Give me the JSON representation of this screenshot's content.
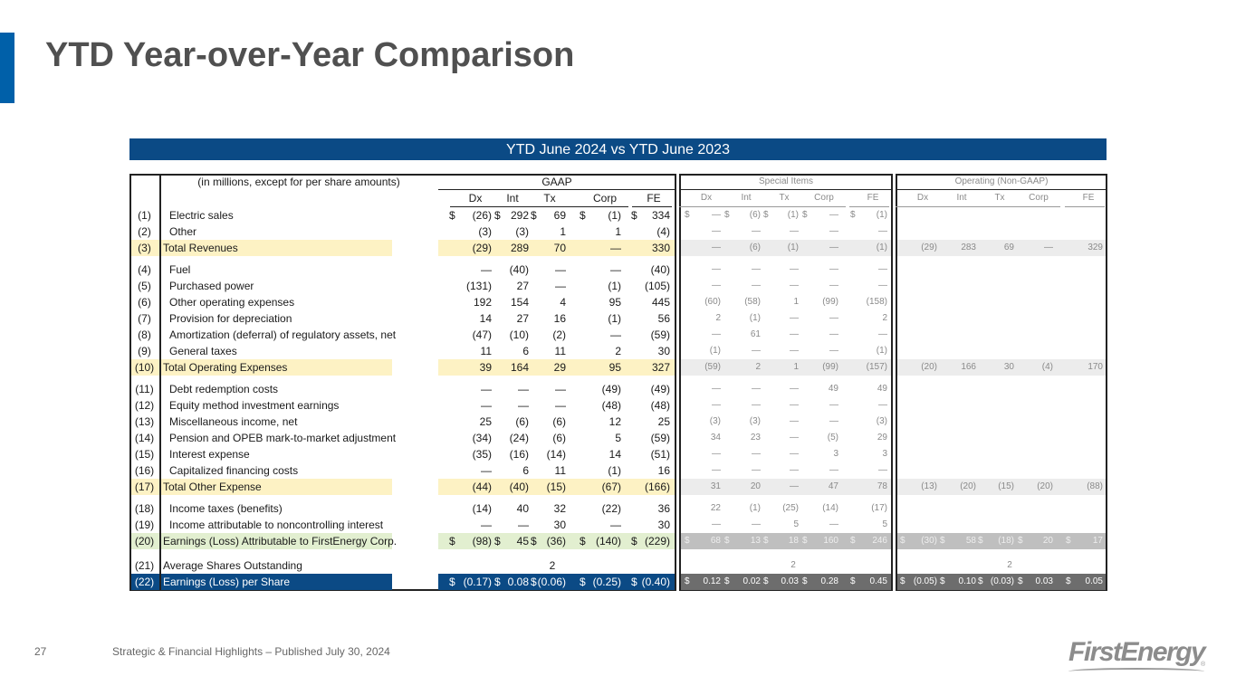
{
  "title": "YTD Year-over-Year Comparison",
  "banner": "YTD June 2024 vs YTD June 2023",
  "units_note": "(in millions, except for per share amounts)",
  "groups": {
    "gaap": "GAAP",
    "special": "Special Items",
    "operating": "Operating (Non-GAAP)"
  },
  "columns": [
    "Dx",
    "Int",
    "Tx",
    "Corp",
    "FE"
  ],
  "colors": {
    "accent": "#0060a9",
    "banner": "#0b4a85",
    "subtotal": "#fdf2c4",
    "earnings": "#e2efd0"
  },
  "rows": [
    {
      "num": "(1)",
      "label": "Electric sales",
      "type": "dollar",
      "gaap": [
        "(26)",
        "292",
        "69",
        "(1)",
        "334"
      ],
      "special": [
        "—",
        "(6)",
        "(1)",
        "—",
        "(1)"
      ],
      "operating": null,
      "special_dollar": true
    },
    {
      "num": "(2)",
      "label": "Other",
      "type": "normal",
      "gaap": [
        "(3)",
        "(3)",
        "1",
        "1",
        "(4)"
      ],
      "special": [
        "—",
        "—",
        "—",
        "—",
        "—"
      ],
      "operating": null
    },
    {
      "num": "(3)",
      "label": "Total Revenues",
      "type": "subtotal",
      "gaap": [
        "(29)",
        "289",
        "70",
        "—",
        "330"
      ],
      "special": [
        "—",
        "(6)",
        "(1)",
        "—",
        "(1)"
      ],
      "operating": [
        "(29)",
        "283",
        "69",
        "—",
        "329"
      ]
    },
    {
      "num": "(4)",
      "label": "Fuel",
      "type": "normal",
      "gaap": [
        "—",
        "(40)",
        "—",
        "—",
        "(40)"
      ],
      "special": [
        "—",
        "—",
        "—",
        "—",
        "—"
      ],
      "operating": null
    },
    {
      "num": "(5)",
      "label": "Purchased power",
      "type": "normal",
      "gaap": [
        "(131)",
        "27",
        "—",
        "(1)",
        "(105)"
      ],
      "special": [
        "—",
        "—",
        "—",
        "—",
        "—"
      ],
      "operating": null
    },
    {
      "num": "(6)",
      "label": "Other operating expenses",
      "type": "normal",
      "gaap": [
        "192",
        "154",
        "4",
        "95",
        "445"
      ],
      "special": [
        "(60)",
        "(58)",
        "1",
        "(99)",
        "(158)"
      ],
      "operating": null
    },
    {
      "num": "(7)",
      "label": "Provision for depreciation",
      "type": "normal",
      "gaap": [
        "14",
        "27",
        "16",
        "(1)",
        "56"
      ],
      "special": [
        "2",
        "(1)",
        "—",
        "—",
        "2"
      ],
      "operating": null
    },
    {
      "num": "(8)",
      "label": "Amortization (deferral) of regulatory assets, net",
      "type": "normal",
      "gaap": [
        "(47)",
        "(10)",
        "(2)",
        "—",
        "(59)"
      ],
      "special": [
        "—",
        "61",
        "—",
        "—",
        "—"
      ],
      "operating": null
    },
    {
      "num": "(9)",
      "label": "General taxes",
      "type": "normal",
      "gaap": [
        "11",
        "6",
        "11",
        "2",
        "30"
      ],
      "special": [
        "(1)",
        "—",
        "—",
        "—",
        "(1)"
      ],
      "operating": null
    },
    {
      "num": "(10)",
      "label": "Total Operating Expenses",
      "type": "subtotal",
      "gaap": [
        "39",
        "164",
        "29",
        "95",
        "327"
      ],
      "special": [
        "(59)",
        "2",
        "1",
        "(99)",
        "(157)"
      ],
      "operating": [
        "(20)",
        "166",
        "30",
        "(4)",
        "170"
      ]
    },
    {
      "num": "(11)",
      "label": "Debt redemption costs",
      "type": "normal",
      "gaap": [
        "—",
        "—",
        "—",
        "(49)",
        "(49)"
      ],
      "special": [
        "—",
        "—",
        "—",
        "49",
        "49"
      ],
      "operating": null
    },
    {
      "num": "(12)",
      "label": "Equity method investment earnings",
      "type": "normal",
      "gaap": [
        "—",
        "—",
        "—",
        "(48)",
        "(48)"
      ],
      "special": [
        "—",
        "—",
        "—",
        "—",
        "—"
      ],
      "operating": null
    },
    {
      "num": "(13)",
      "label": "Miscellaneous income, net",
      "type": "normal",
      "gaap": [
        "25",
        "(6)",
        "(6)",
        "12",
        "25"
      ],
      "special": [
        "(3)",
        "(3)",
        "—",
        "—",
        "(3)"
      ],
      "operating": null
    },
    {
      "num": "(14)",
      "label": "Pension and OPEB mark-to-market adjustment",
      "type": "normal",
      "gaap": [
        "(34)",
        "(24)",
        "(6)",
        "5",
        "(59)"
      ],
      "special": [
        "34",
        "23",
        "—",
        "(5)",
        "29"
      ],
      "operating": null
    },
    {
      "num": "(15)",
      "label": "Interest expense",
      "type": "normal",
      "gaap": [
        "(35)",
        "(16)",
        "(14)",
        "14",
        "(51)"
      ],
      "special": [
        "—",
        "—",
        "—",
        "3",
        "3"
      ],
      "operating": null
    },
    {
      "num": "(16)",
      "label": "Capitalized financing costs",
      "type": "normal",
      "gaap": [
        "—",
        "6",
        "11",
        "(1)",
        "16"
      ],
      "special": [
        "—",
        "—",
        "—",
        "—",
        "—"
      ],
      "operating": null
    },
    {
      "num": "(17)",
      "label": "Total Other Expense",
      "type": "subtotal",
      "gaap": [
        "(44)",
        "(40)",
        "(15)",
        "(67)",
        "(166)"
      ],
      "special": [
        "31",
        "20",
        "—",
        "47",
        "78"
      ],
      "operating": [
        "(13)",
        "(20)",
        "(15)",
        "(20)",
        "(88)"
      ]
    },
    {
      "num": "(18)",
      "label": "Income taxes (benefits)",
      "type": "normal",
      "gaap": [
        "(14)",
        "40",
        "32",
        "(22)",
        "36"
      ],
      "special": [
        "22",
        "(1)",
        "(25)",
        "(14)",
        "(17)"
      ],
      "operating": null
    },
    {
      "num": "(19)",
      "label": "Income attributable to noncontrolling interest",
      "type": "normal",
      "gaap": [
        "—",
        "—",
        "30",
        "—",
        "30"
      ],
      "special": [
        "—",
        "—",
        "5",
        "—",
        "5"
      ],
      "operating": null
    },
    {
      "num": "(20)",
      "label": "Earnings (Loss) Attributable to FirstEnergy Corp.",
      "type": "earnings",
      "gaap": [
        "(98)",
        "45",
        "(36)",
        "(140)",
        "(229)"
      ],
      "special": [
        "68",
        "13",
        "18",
        "160",
        "246"
      ],
      "operating": [
        "(30)",
        "58",
        "(18)",
        "20",
        "17"
      ]
    },
    {
      "num": "(21)",
      "label": "Average Shares Outstanding",
      "type": "shares",
      "gaap_value": "2",
      "special_value": "2",
      "operating_value": "2"
    },
    {
      "num": "(22)",
      "label": "Earnings (Loss) per Share",
      "type": "eps",
      "gaap": [
        "(0.17)",
        "0.08",
        "(0.06)",
        "(0.25)",
        "(0.40)"
      ],
      "special": [
        "0.12",
        "0.02",
        "0.03",
        "0.28",
        "0.45"
      ],
      "operating": [
        "(0.05)",
        "0.10",
        "(0.03)",
        "0.03",
        "0.05"
      ]
    }
  ],
  "footer": {
    "page": "27",
    "text": "Strategic & Financial Highlights – Published July 30, 2024"
  },
  "logo": "FirstEnergy"
}
